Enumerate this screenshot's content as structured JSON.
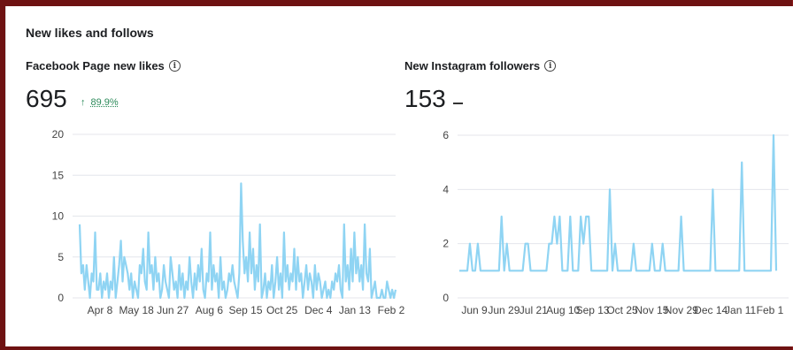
{
  "section_title": "New likes and follows",
  "facebook": {
    "title": "Facebook Page new likes",
    "total": "695",
    "change": "89.9%",
    "chart_data": {
      "type": "line",
      "title": "Facebook Page new likes",
      "ylim": [
        0,
        20
      ],
      "yticks": [
        "0",
        "5",
        "10",
        "15",
        "20"
      ],
      "xticks": [
        "Apr 8",
        "May 18",
        "Jun 27",
        "Aug 6",
        "Sep 15",
        "Oct 25",
        "Dec 4",
        "Jan 13",
        "Feb 2"
      ],
      "values": [
        9,
        3,
        4,
        1,
        4,
        2,
        0,
        3,
        2,
        8,
        1,
        1,
        3,
        0,
        2,
        1,
        3,
        0,
        2,
        1,
        5,
        0,
        2,
        4,
        7,
        2,
        5,
        4,
        3,
        1,
        3,
        0,
        2,
        1,
        0,
        4,
        3,
        6,
        2,
        1,
        8,
        3,
        4,
        1,
        5,
        2,
        3,
        0,
        1,
        4,
        2,
        1,
        0,
        5,
        3,
        1,
        2,
        0,
        4,
        1,
        3,
        0,
        2,
        1,
        5,
        2,
        0,
        3,
        1,
        4,
        2,
        6,
        1,
        0,
        3,
        2,
        8,
        1,
        4,
        2,
        3,
        0,
        5,
        1,
        2,
        0,
        1,
        3,
        2,
        4,
        2,
        1,
        0,
        3,
        14,
        7,
        3,
        5,
        2,
        8,
        3,
        6,
        1,
        4,
        2,
        9,
        0,
        1,
        3,
        0,
        2,
        1,
        4,
        0,
        2,
        5,
        1,
        3,
        0,
        8,
        2,
        4,
        1,
        3,
        2,
        6,
        1,
        5,
        2,
        3,
        0,
        2,
        4,
        1,
        3,
        2,
        0,
        4,
        1,
        3,
        2,
        0,
        1,
        2,
        0,
        1,
        0,
        2,
        1,
        3,
        2,
        4,
        1,
        0,
        9,
        2,
        4,
        1,
        6,
        2,
        8,
        3,
        5,
        2,
        4,
        1,
        9,
        3,
        2,
        6,
        0,
        1,
        2,
        0,
        0,
        0,
        1,
        0,
        0,
        2,
        1,
        0,
        1,
        0,
        1
      ]
    }
  },
  "instagram": {
    "title": "New Instagram followers",
    "total": "153",
    "chart_data": {
      "type": "line",
      "title": "New Instagram followers",
      "ylim": [
        0,
        6
      ],
      "yticks": [
        "0",
        "2",
        "4",
        "6"
      ],
      "xticks": [
        "Jun 9",
        "Jun 29",
        "Jul 21",
        "Aug 10",
        "Sep 13",
        "Oct 25",
        "Nov 15",
        "Nov 29",
        "Dec 14",
        "Jan 11",
        "Feb 1"
      ],
      "values": [
        1,
        1,
        1,
        1,
        2,
        1,
        1,
        2,
        1,
        1,
        1,
        1,
        1,
        1,
        1,
        1,
        3,
        1,
        2,
        1,
        1,
        1,
        1,
        1,
        1,
        2,
        2,
        1,
        1,
        1,
        1,
        1,
        1,
        1,
        2,
        2,
        3,
        2,
        3,
        1,
        1,
        1,
        3,
        1,
        1,
        1,
        3,
        2,
        3,
        3,
        1,
        1,
        1,
        1,
        1,
        1,
        1,
        4,
        1,
        2,
        1,
        1,
        1,
        1,
        1,
        1,
        2,
        1,
        1,
        1,
        1,
        1,
        1,
        2,
        1,
        1,
        1,
        2,
        1,
        1,
        1,
        1,
        1,
        1,
        3,
        1,
        1,
        1,
        1,
        1,
        1,
        1,
        1,
        1,
        1,
        1,
        4,
        1,
        1,
        1,
        1,
        1,
        1,
        1,
        1,
        1,
        1,
        5,
        1,
        1,
        1,
        1,
        1,
        1,
        1,
        1,
        1,
        1,
        1,
        6,
        1
      ]
    }
  }
}
